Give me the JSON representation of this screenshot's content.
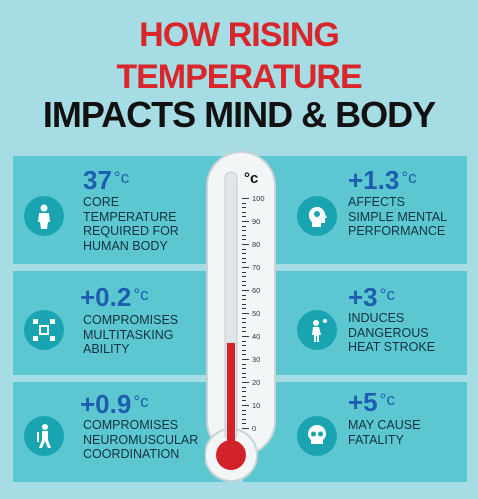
{
  "title": {
    "line1": "HOW RISING",
    "line2": "TEMPERATURE",
    "line3": "IMPACTS MIND & BODY"
  },
  "thermometer": {
    "unit": "°c",
    "scale": [
      "100",
      "90",
      "80",
      "70",
      "60",
      "50",
      "40",
      "30",
      "20",
      "10",
      "0"
    ],
    "level": 37,
    "scale_min": 0,
    "scale_max": 100
  },
  "facts": [
    {
      "value": "37",
      "unit": "°c",
      "text": [
        "CORE",
        "TEMPERATURE",
        "REQUIRED FOR",
        "HUMAN BODY"
      ],
      "icon": "human-body-icon"
    },
    {
      "value": "+1.3",
      "unit": "°c",
      "text": [
        "AFFECTS",
        "SIMPLE MENTAL",
        "PERFORMANCE"
      ],
      "icon": "brain-head-icon"
    },
    {
      "value": "+0.2",
      "unit": "°c",
      "text": [
        "COMPROMISES",
        "MULTITASKING",
        "ABILITY"
      ],
      "icon": "multitasking-icon"
    },
    {
      "value": "+3",
      "unit": "°c",
      "text": [
        "INDUCES",
        "DANGEROUS",
        "HEAT STROKE"
      ],
      "icon": "heat-stroke-icon"
    },
    {
      "value": "+0.9",
      "unit": "°c",
      "text": [
        "COMPROMISES",
        "NEUROMUSCULAR",
        "COORDINATION"
      ],
      "icon": "neuromuscular-icon"
    },
    {
      "value": "+5",
      "unit": "°c",
      "text": [
        "MAY CAUSE",
        "FATALITY"
      ],
      "icon": "skull-icon"
    }
  ],
  "colors": {
    "background": "#a6dde4",
    "band": "#5cc7d0",
    "icon_circle": "#1aa3b0",
    "value": "#1d5fae",
    "title_red": "#d9262b",
    "mercury": "#d2232a"
  }
}
